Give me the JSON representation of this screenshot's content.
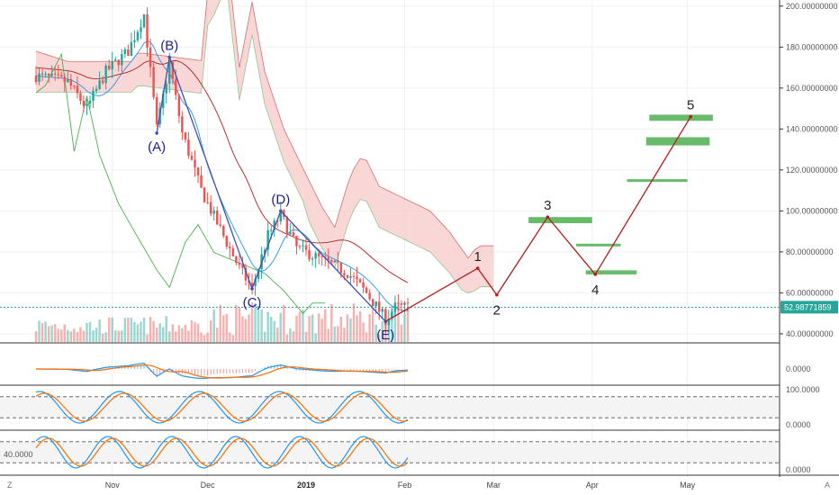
{
  "chart_data": {
    "type": "candlestick",
    "price_axis": {
      "ticks": [
        40,
        60,
        80,
        100,
        120,
        140,
        160,
        180,
        200
      ],
      "tick_labels": [
        "40.00000000",
        "60.00000000",
        "80.00000000",
        "100.00000000",
        "120.00000000",
        "140.00000000",
        "160.00000000",
        "180.00000000",
        "200.00000000"
      ],
      "range": [
        36,
        203
      ]
    },
    "last_price": {
      "value": 52.98771859,
      "label": "52.98771859",
      "color": "#26a69a"
    },
    "time_axis": {
      "labels": [
        {
          "text": "Nov",
          "day": 0,
          "bold": false
        },
        {
          "text": "Dec",
          "day": 30,
          "bold": false
        },
        {
          "text": "2019",
          "day": 61,
          "bold": true
        },
        {
          "text": "Feb",
          "day": 92,
          "bold": false
        },
        {
          "text": "Mar",
          "day": 120,
          "bold": false
        },
        {
          "text": "Apr",
          "day": 151,
          "bold": false
        },
        {
          "text": "May",
          "day": 181,
          "bold": false
        }
      ],
      "range_days": [
        -24,
        210
      ]
    },
    "abc_correction": {
      "color": "#3f51b5",
      "points": [
        {
          "label": "(A)",
          "day": 14,
          "price": 138
        },
        {
          "label": "(B)",
          "day": 18,
          "price": 175
        },
        {
          "label": "(C)",
          "day": 44,
          "price": 62
        },
        {
          "label": "(D)",
          "day": 53,
          "price": 100
        },
        {
          "label": "(E)",
          "day": 86,
          "price": 46
        }
      ]
    },
    "impulse_projection": {
      "color": "#b71c1c",
      "points": [
        {
          "label": "",
          "day": 86,
          "price": 46
        },
        {
          "label": "1",
          "day": 115,
          "price": 72
        },
        {
          "label": "2",
          "day": 121,
          "price": 59
        },
        {
          "label": "3",
          "day": 137,
          "price": 97
        },
        {
          "label": "4",
          "day": 152,
          "price": 69
        },
        {
          "label": "5",
          "day": 182,
          "price": 146
        }
      ]
    },
    "target_zones": {
      "color": "#4caf50",
      "zones": [
        {
          "day_start": 131,
          "day_end": 151,
          "price_low": 94,
          "price_high": 97
        },
        {
          "day_start": 146,
          "day_end": 160,
          "price_low": 83,
          "price_high": 84
        },
        {
          "day_start": 149,
          "day_end": 165,
          "price_low": 69,
          "price_high": 71
        },
        {
          "day_start": 162,
          "day_end": 181,
          "price_low": 114.5,
          "price_high": 115.5
        },
        {
          "day_start": 168,
          "day_end": 188,
          "price_low": 132,
          "price_high": 136
        },
        {
          "day_start": 169,
          "day_end": 189,
          "price_low": 144,
          "price_high": 147
        }
      ]
    },
    "oscillators": [
      {
        "id": "macd",
        "tick_labels": [
          "0.0000"
        ],
        "tick_values": [
          0
        ]
      },
      {
        "id": "stochastic",
        "tick_labels": [
          "100.0000",
          "0.0000"
        ],
        "tick_values": [
          100,
          0
        ],
        "bands": [
          80,
          20
        ]
      },
      {
        "id": "stoch_rsi",
        "left_label": "40.0000",
        "tick_labels": [
          "0.0000"
        ],
        "tick_values": [
          0
        ],
        "bands": [
          80,
          20
        ]
      }
    ],
    "colors": {
      "up": "#26a69a",
      "down": "#ef5350",
      "cloud_bear": "#f8c9c9",
      "cloud_bull": "#b6dcb1",
      "kijun": "#b71c1c",
      "tenkan": "#2196f3",
      "chikou": "#4caf50",
      "stoch_k": "#2196f3",
      "stoch_d": "#ff6d00"
    },
    "corner_labels": {
      "left": "Z",
      "right": "A"
    }
  }
}
